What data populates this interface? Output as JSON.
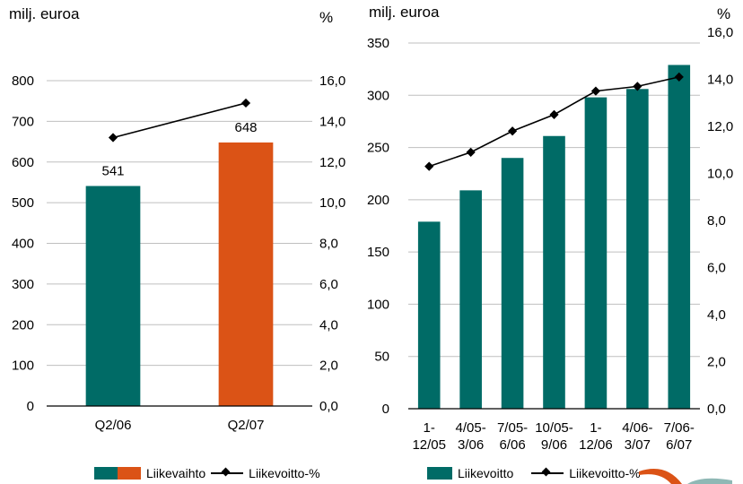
{
  "colors": {
    "teal": "#006B66",
    "orange": "#DB5316",
    "axis": "#000000",
    "grid": "#BFBFBF"
  },
  "chart_data": [
    {
      "type": "bar",
      "left_unit": "milj. euroa",
      "right_unit": "%",
      "categories": [
        "Q2/06",
        "Q2/07"
      ],
      "series": [
        {
          "name": "Liikevaihto",
          "values": [
            541,
            648
          ],
          "colors": [
            "#006B66",
            "#DB5316"
          ]
        },
        {
          "name": "Liikevoitto-%",
          "type": "line",
          "axis": "right",
          "values": [
            13.2,
            14.9
          ]
        }
      ],
      "data_labels": [
        "541",
        "648"
      ],
      "yticks": [
        "0",
        "100",
        "200",
        "300",
        "400",
        "500",
        "600",
        "700",
        "800"
      ],
      "ylim": [
        0,
        800
      ],
      "y2ticks": [
        "0,0",
        "2,0",
        "4,0",
        "6,0",
        "8,0",
        "10,0",
        "12,0",
        "14,0",
        "16,0"
      ],
      "y2lim": [
        0,
        16
      ],
      "grid": true,
      "legend": {
        "position": "bottom",
        "items": [
          "Liikevaihto",
          "Liikevoitto-%"
        ]
      }
    },
    {
      "type": "bar",
      "left_unit": "milj. euroa",
      "right_unit": "%",
      "categories": [
        [
          "1-",
          "12/05"
        ],
        [
          "4/05-",
          "3/06"
        ],
        [
          "7/05-",
          "6/06"
        ],
        [
          "10/05-",
          "9/06"
        ],
        [
          "1-",
          "12/06"
        ],
        [
          "4/06-",
          "3/07"
        ],
        [
          "7/06-",
          "6/07"
        ]
      ],
      "series": [
        {
          "name": "Liikevoitto",
          "values": [
            179,
            209,
            240,
            261,
            298,
            306,
            329
          ],
          "color": "#006B66"
        },
        {
          "name": "Liikevoitto-%",
          "type": "line",
          "axis": "right",
          "values": [
            10.3,
            10.9,
            11.8,
            12.5,
            13.5,
            13.7,
            14.1
          ]
        }
      ],
      "yticks": [
        "0",
        "50",
        "100",
        "150",
        "200",
        "250",
        "300",
        "350"
      ],
      "ylim": [
        0,
        350
      ],
      "y2ticks": [
        "0,0",
        "2,0",
        "4,0",
        "6,0",
        "8,0",
        "10,0",
        "12,0",
        "14,0",
        "16,0"
      ],
      "y2lim": [
        0,
        16
      ],
      "grid": true,
      "legend": {
        "position": "bottom",
        "items": [
          "Liikevoitto",
          "Liikevoitto-%"
        ]
      }
    }
  ]
}
